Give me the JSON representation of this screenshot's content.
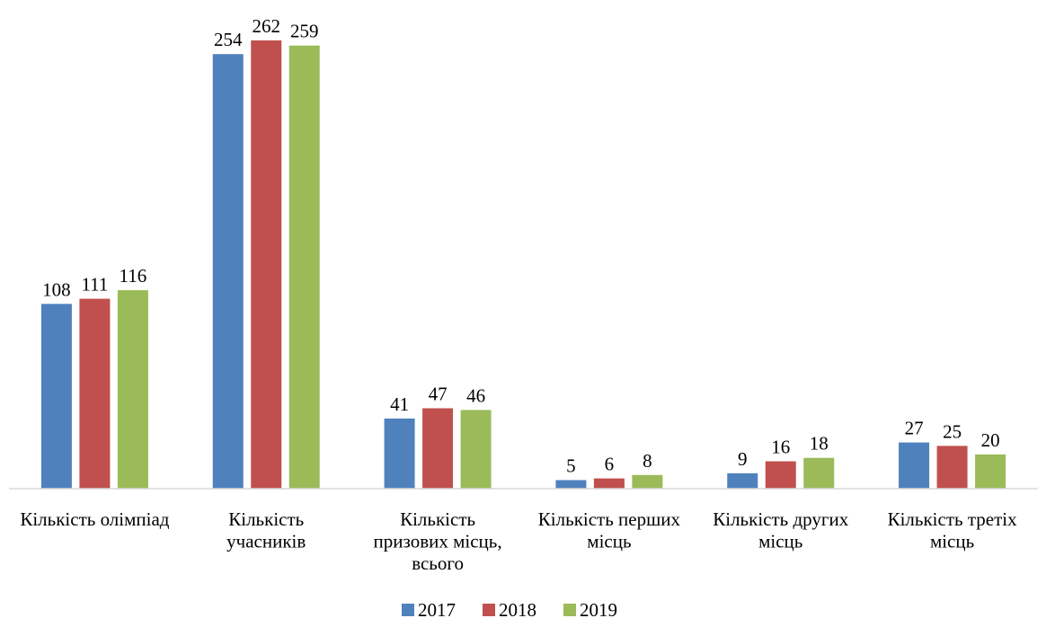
{
  "chart_data": {
    "type": "bar",
    "title": "",
    "xlabel": "",
    "ylabel": "",
    "ylim": [
      0,
      262
    ],
    "grid": false,
    "legend_position": "bottom",
    "categories": [
      [
        "Кількість олімпіад"
      ],
      [
        "Кількість",
        "учасників"
      ],
      [
        "Кількість",
        "призових місць,",
        "всього"
      ],
      [
        "Кількість перших",
        "місць"
      ],
      [
        "Кількість других",
        "місць"
      ],
      [
        "Кількість третіх",
        "місць"
      ]
    ],
    "series": [
      {
        "name": "2017",
        "color": "#4f81bd",
        "values": [
          108,
          254,
          41,
          5,
          9,
          27
        ]
      },
      {
        "name": "2018",
        "color": "#c0504d",
        "values": [
          111,
          262,
          47,
          6,
          16,
          25
        ]
      },
      {
        "name": "2019",
        "color": "#9bbb59",
        "values": [
          116,
          259,
          46,
          8,
          18,
          20
        ]
      }
    ]
  }
}
